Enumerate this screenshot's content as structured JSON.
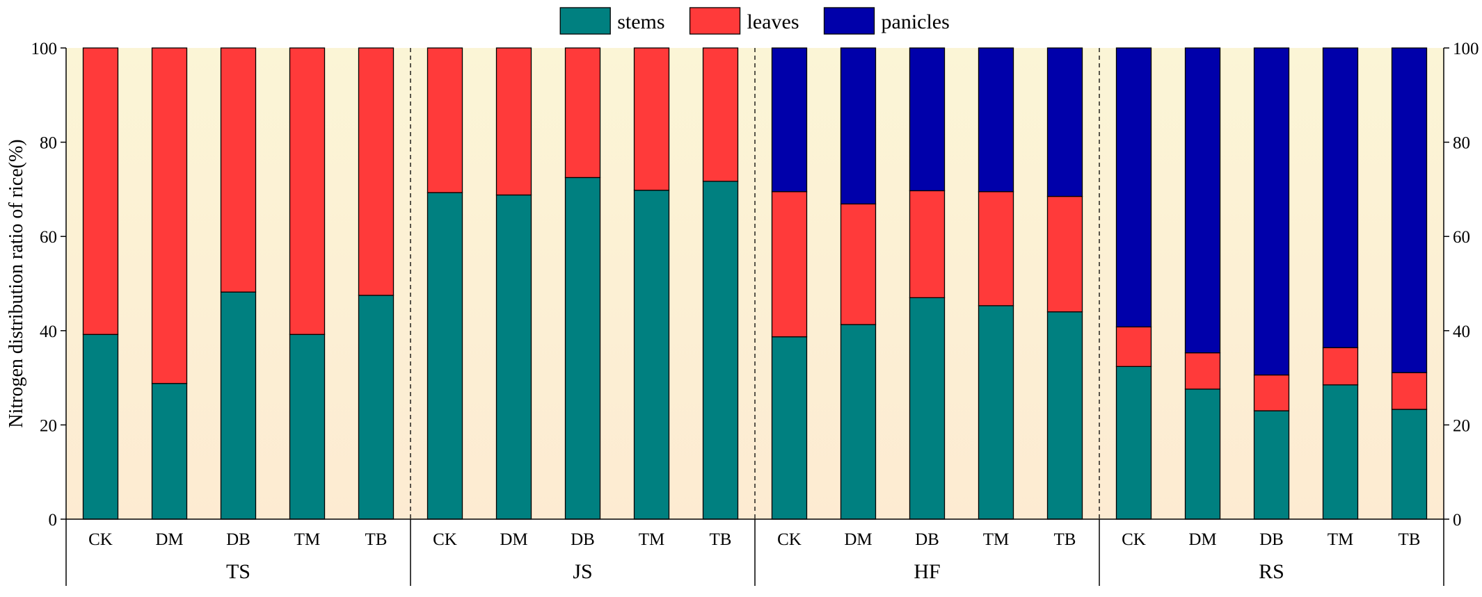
{
  "chart_data": {
    "type": "bar",
    "stacked": true,
    "title": "",
    "xlabel": "",
    "ylabel": "Nitrogen distribution ratio of rice(%)",
    "ylim": [
      0,
      100
    ],
    "yticks": [
      0,
      20,
      40,
      60,
      80,
      100
    ],
    "categories": [
      "CK",
      "DM",
      "DB",
      "TM",
      "TB"
    ],
    "groups": [
      {
        "name": "TS",
        "series": [
          {
            "name": "stems",
            "values": [
              39.2,
              28.8,
              48.2,
              39.2,
              47.5
            ]
          },
          {
            "name": "leaves",
            "values": [
              60.8,
              71.2,
              51.8,
              60.8,
              52.5
            ]
          },
          {
            "name": "panicles",
            "values": [
              0,
              0,
              0,
              0,
              0
            ]
          }
        ]
      },
      {
        "name": "JS",
        "series": [
          {
            "name": "stems",
            "values": [
              69.3,
              68.8,
              72.5,
              69.8,
              71.7
            ]
          },
          {
            "name": "leaves",
            "values": [
              30.7,
              31.2,
              27.5,
              30.2,
              28.3
            ]
          },
          {
            "name": "panicles",
            "values": [
              0,
              0,
              0,
              0,
              0
            ]
          }
        ]
      },
      {
        "name": "HF",
        "series": [
          {
            "name": "stems",
            "values": [
              38.7,
              41.3,
              47.0,
              45.3,
              44.0
            ]
          },
          {
            "name": "leaves",
            "values": [
              30.8,
              25.6,
              22.7,
              24.2,
              24.5
            ]
          },
          {
            "name": "panicles",
            "values": [
              30.5,
              33.1,
              30.3,
              30.5,
              31.5
            ]
          }
        ]
      },
      {
        "name": "RS",
        "series": [
          {
            "name": "stems",
            "values": [
              32.4,
              27.6,
              23.0,
              28.5,
              23.3
            ]
          },
          {
            "name": "leaves",
            "values": [
              8.4,
              7.7,
              7.6,
              7.9,
              7.8
            ]
          },
          {
            "name": "panicles",
            "values": [
              59.2,
              64.7,
              69.4,
              63.6,
              68.9
            ]
          }
        ]
      }
    ],
    "legend": {
      "position": "top-center",
      "entries": [
        {
          "name": "stems",
          "color": "#008080"
        },
        {
          "name": "leaves",
          "color": "#FF3A3A"
        },
        {
          "name": "panicles",
          "color": "#0000AA"
        }
      ]
    },
    "colors": {
      "stems": "#008080",
      "leaves": "#FF3A3A",
      "panicles": "#0000AA",
      "background_top": "#FBF5D6",
      "background_bottom": "#FDEBD2"
    },
    "secondary_y_axis": true,
    "group_separators": "dashed"
  }
}
